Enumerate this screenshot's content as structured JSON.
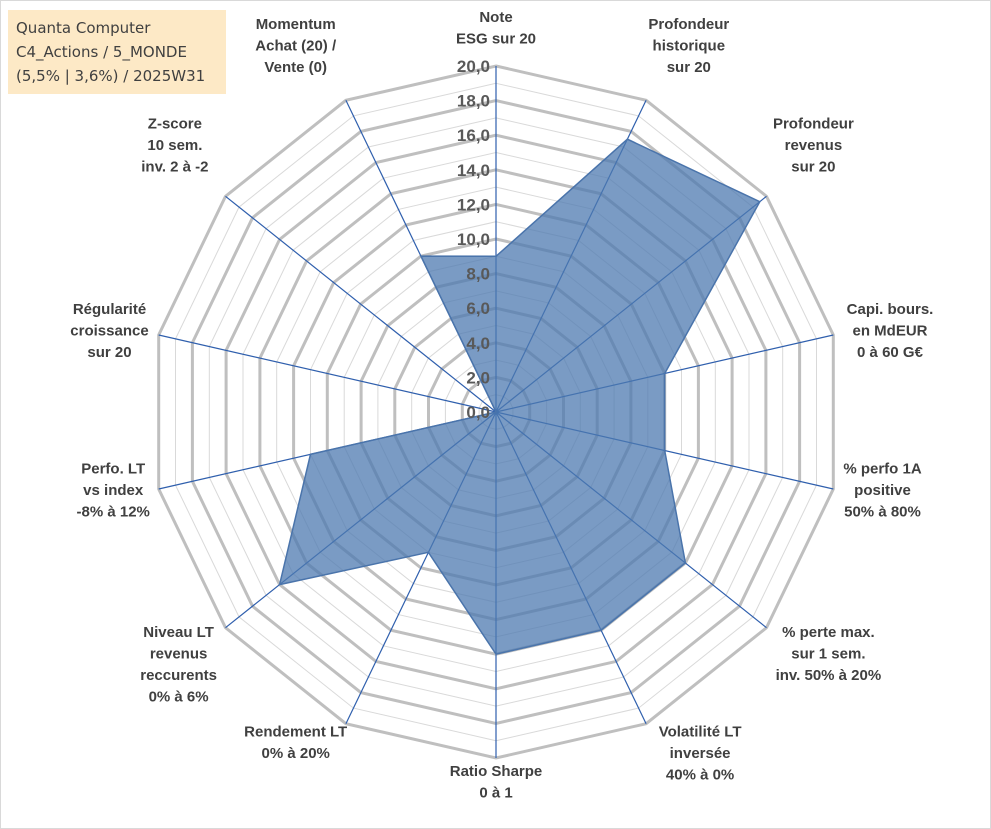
{
  "title_box": {
    "line1": "Quanta Computer",
    "line2": "C4_Actions / 5_MONDE",
    "line3": "(5,5% | 3,6%) / 2025W31"
  },
  "chart_data": {
    "type": "radar",
    "rmin": 0,
    "rmax": 20,
    "tick_step": 2,
    "tick_labels": [
      "0,0",
      "2,0",
      "4,0",
      "6,0",
      "8,0",
      "10,0",
      "12,0",
      "14,0",
      "16,0",
      "18,0",
      "20,0"
    ],
    "axes": [
      {
        "label": [
          "Note",
          "ESG sur 20"
        ],
        "value": 9
      },
      {
        "label": [
          "Profondeur",
          "historique",
          "sur 20"
        ],
        "value": 17.5
      },
      {
        "label": [
          "Profondeur",
          "revenus",
          "sur 20"
        ],
        "value": 19.5
      },
      {
        "label": [
          "Capi. bours.",
          "en MdEUR",
          "0 à 60 G€"
        ],
        "value": 10
      },
      {
        "label": [
          "% perfo 1A",
          "positive",
          "50% à 80%"
        ],
        "value": 10
      },
      {
        "label": [
          "% perte max.",
          "sur 1 sem.",
          "inv. 50% à 20%"
        ],
        "value": 14
      },
      {
        "label": [
          "Volatilité LT",
          "inversée",
          "40% à 0%"
        ],
        "value": 14
      },
      {
        "label": [
          "Ratio Sharpe",
          "0 à 1"
        ],
        "value": 14
      },
      {
        "label": [
          "Rendement LT",
          "0% à 20%"
        ],
        "value": 9
      },
      {
        "label": [
          "Niveau LT",
          "revenus",
          "reccurents",
          "0% à 6%"
        ],
        "value": 16
      },
      {
        "label": [
          "Perfo. LT",
          "vs index",
          "-8% à 12%"
        ],
        "value": 11
      },
      {
        "label": [
          "Régularité",
          "croissance",
          "sur 20"
        ],
        "value": 0
      },
      {
        "label": [
          "Z-score",
          "10 sem.",
          "inv. 2 à -2"
        ],
        "value": 0
      },
      {
        "label": [
          "Momentum",
          "Achat (20) /",
          "Vente (0)"
        ],
        "value": 10
      }
    ],
    "fill_color": "#4e79b0",
    "fill_opacity": 0.75,
    "grid_major_color": "#bfbfbf",
    "grid_minor_color": "#d9d9d9",
    "spoke_color": "#2f5fad",
    "grid": true
  }
}
